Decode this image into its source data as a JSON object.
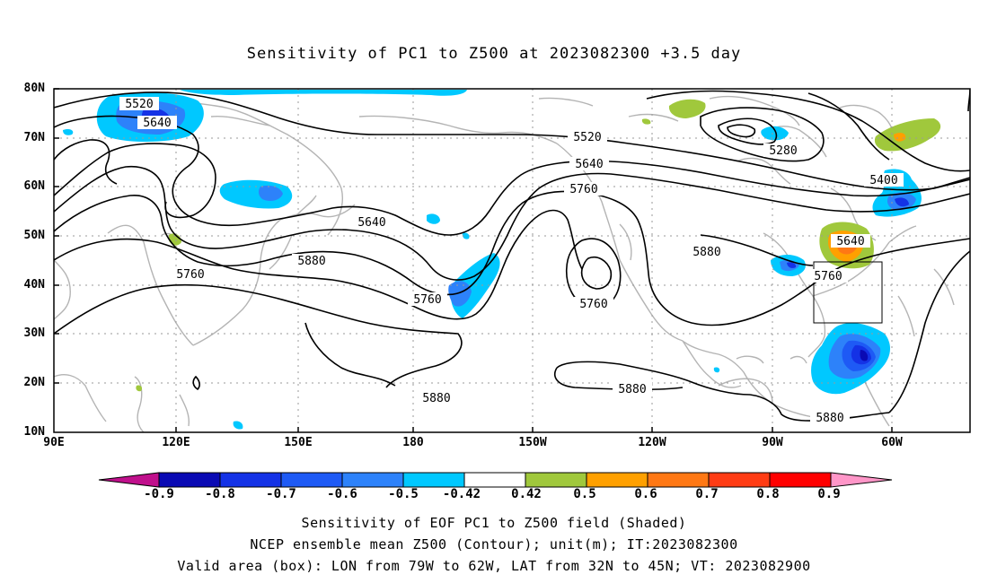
{
  "title": "Sensitivity of PC1 to Z500 at 2023082300 +3.5 day",
  "lat_labels": [
    "80N",
    "70N",
    "60N",
    "50N",
    "40N",
    "30N",
    "20N",
    "10N"
  ],
  "lon_labels": [
    "90E",
    "120E",
    "150E",
    "180",
    "150W",
    "120W",
    "90W",
    "60W"
  ],
  "contour_labels": [
    "5520",
    "5640",
    "5520",
    "5640",
    "5760",
    "5640",
    "5880",
    "5760",
    "5760",
    "5880",
    "5760",
    "5280",
    "5400",
    "5640",
    "5760",
    "5880",
    "5880",
    "5880"
  ],
  "colorbar": {
    "labels": [
      "-0.9",
      "-0.8",
      "-0.7",
      "-0.6",
      "-0.5",
      "-0.42",
      "0.42",
      "0.5",
      "0.6",
      "0.7",
      "0.8",
      "0.9"
    ],
    "colors": [
      "#c0108c",
      "#0a0ab4",
      "#1432e6",
      "#1e5af5",
      "#2d82fa",
      "#00c8ff",
      "#ffffff",
      "#a0c83c",
      "#ffa000",
      "#ff7814",
      "#ff3c14",
      "#ff0000",
      "#ff96c8"
    ]
  },
  "captions": [
    "Sensitivity of EOF PC1 to Z500 field (Shaded)",
    "NCEP ensemble mean Z500 (Contour); unit(m); IT:2023082300",
    "Valid area (box): LON from 79W to 62W, LAT from 32N to 45N; VT: 2023082900"
  ]
}
